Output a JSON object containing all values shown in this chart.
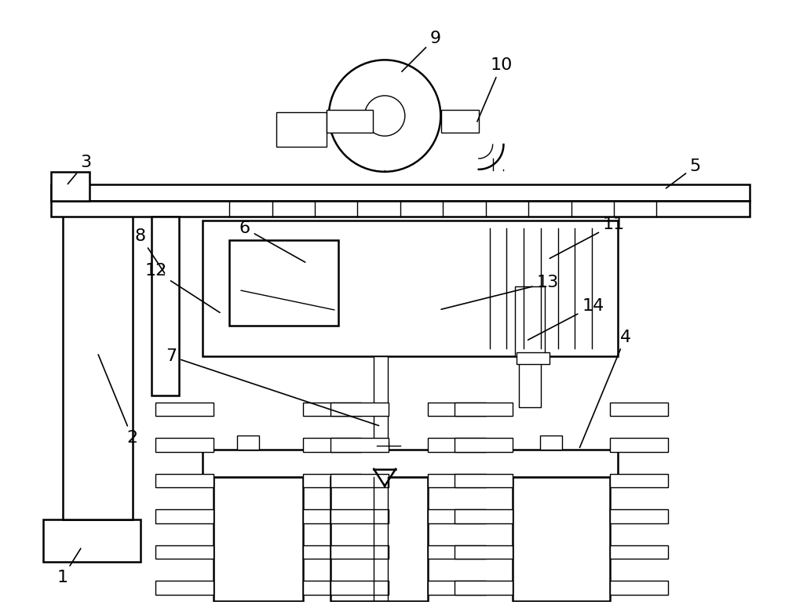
{
  "fig_width": 10.0,
  "fig_height": 7.71,
  "bg_color": "#ffffff",
  "line_color": "#000000",
  "lw_main": 1.8,
  "lw_thin": 1.0
}
